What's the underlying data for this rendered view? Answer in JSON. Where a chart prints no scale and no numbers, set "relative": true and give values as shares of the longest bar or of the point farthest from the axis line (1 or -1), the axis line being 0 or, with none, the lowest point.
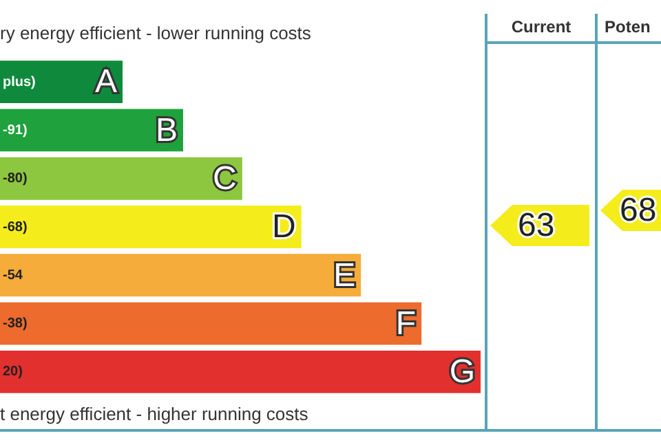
{
  "chart_data": {
    "type": "bar",
    "orientation": "horizontal",
    "relative": true,
    "title": "ry energy efficient - lower running costs",
    "categories": [
      "A",
      "B",
      "C",
      "D",
      "E",
      "F",
      "G"
    ],
    "values": [
      0.255,
      0.381,
      0.504,
      0.627,
      0.751,
      0.877,
      1
    ],
    "colors": [
      "#0f8a3c",
      "#1fa23d",
      "#8dc63f",
      "#f5ec1c",
      "#f5ac3a",
      "#ec6b2d",
      "#e2302f"
    ],
    "annotations": [
      "t energy efficient - higher running costs",
      "Current",
      "Poten",
      "63",
      "68",
      "plus)",
      "-91)",
      "-80)",
      "-68)",
      "-54",
      "-38)",
      "20)"
    ],
    "legend": false
  }
}
